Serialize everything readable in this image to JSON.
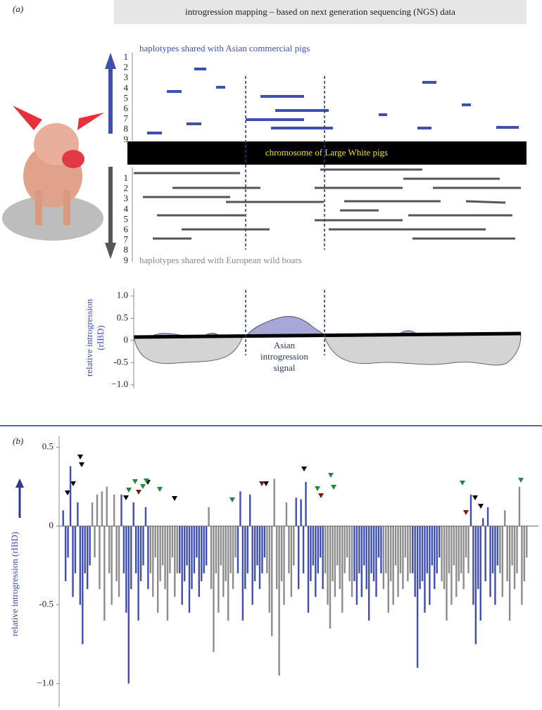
{
  "header": {
    "panel_a": "(a)",
    "banner": "introgression mapping – based on next generation sequencing (NGS) data",
    "panel_b": "(b)"
  },
  "haplotypes": {
    "asian_label": "haplotypes shared with Asian commercial pigs",
    "wild_label": "haplotypes shared with European wild boars",
    "chromosome_label": "chromosome of Large White pigs",
    "rows_top": [
      1,
      2,
      3,
      4,
      5,
      6,
      7,
      8,
      9
    ],
    "rows_bottom": [
      1,
      2,
      3,
      4,
      5,
      6,
      7,
      8,
      9
    ]
  },
  "chart_data": [
    {
      "type": "area",
      "ylabel": [
        "relative introgression",
        "(rIBD)"
      ],
      "annotation": [
        "Asian",
        "introgression",
        "signal"
      ],
      "ylim": [
        -1.08,
        1.17
      ],
      "yticks": [
        {
          "value": 1.0,
          "label": "1.0"
        },
        0.5,
        0,
        -0.5,
        {
          "value": -1.0,
          "label": "−1.0"
        }
      ]
    },
    {
      "type": "bar",
      "ylabel": "relative introgression (rIBD)",
      "ylim": [
        -1.15,
        0.57
      ],
      "yticks": [
        0.5,
        0,
        -0.5,
        {
          "value": -1.0,
          "label": "−1.0"
        }
      ],
      "series": [
        {
          "color": "#3f4fae",
          "values": [
            0.1,
            -0.35,
            -0.2,
            0.38,
            -0.45,
            -0.3,
            0.15,
            -0.5,
            -0.75,
            -0.3,
            -0.4,
            -0.25
          ]
        },
        {
          "color": "#8c8c8c",
          "values": [
            0.15,
            -0.2,
            0.2,
            -0.4,
            0.22,
            -0.6,
            0.25,
            -0.3,
            -0.5,
            0.2,
            -0.35,
            -0.45
          ]
        },
        {
          "color": "#3f4fae",
          "values": [
            0.2,
            -0.3,
            -0.55,
            -1.0,
            -0.4,
            0.15,
            -0.3,
            -0.6,
            -0.35,
            -0.25,
            0.12,
            -0.4
          ]
        },
        {
          "color": "#8c8c8c",
          "values": [
            -0.3,
            -0.45,
            -0.2,
            -0.55,
            -0.35,
            -0.25,
            -0.4,
            -0.6,
            -0.3,
            -0.2,
            -0.45,
            -0.3
          ]
        },
        {
          "color": "#3f4fae",
          "values": [
            -0.3,
            -0.5,
            -0.35,
            -0.25,
            -0.55,
            -0.4,
            -0.3,
            -0.2,
            -0.45,
            -0.35,
            -0.3,
            -0.25
          ]
        },
        {
          "color": "#8c8c8c",
          "values": [
            0.12,
            -0.4,
            -0.8,
            -0.3,
            -0.55,
            -0.25,
            -0.45,
            -0.35,
            -0.6,
            -0.3,
            -0.4,
            -0.2
          ]
        },
        {
          "color": "#3f4fae",
          "values": [
            -0.3,
            0.22,
            -0.6,
            -0.4,
            -0.3,
            0.2,
            -0.5,
            -0.35,
            -0.25,
            -0.4,
            -0.3,
            -0.2
          ]
        },
        {
          "color": "#8c8c8c",
          "values": [
            -0.3,
            -0.55,
            -0.7,
            0.3,
            -0.4,
            -0.95,
            -0.35,
            -0.5,
            0.15,
            -0.3,
            -0.45,
            -0.25
          ]
        },
        {
          "color": "#3f4fae",
          "values": [
            0.18,
            -0.4,
            0.17,
            -0.3,
            0.28,
            -0.55,
            -0.35,
            -0.25,
            -0.45,
            -0.3,
            -0.2,
            -0.4
          ]
        },
        {
          "color": "#8c8c8c",
          "values": [
            -0.3,
            -0.5,
            -0.65,
            -0.35,
            -0.45,
            -0.25,
            -0.4,
            -0.55,
            -0.3,
            -0.2,
            -0.35,
            -0.45
          ]
        },
        {
          "color": "#3f4fae",
          "values": [
            -0.35,
            -0.5,
            -0.3,
            -0.45,
            -0.25,
            -0.4,
            -0.6,
            -0.3,
            -0.35,
            -0.45,
            -0.2,
            -0.3
          ]
        },
        {
          "color": "#8c8c8c",
          "values": [
            -0.4,
            -0.3,
            -0.55,
            -0.35,
            -0.5,
            -0.25,
            -0.45,
            -0.3,
            -0.4,
            -0.2,
            -0.35,
            -0.3
          ]
        },
        {
          "color": "#3f4fae",
          "values": [
            -0.3,
            -0.45,
            -0.9,
            -0.4,
            -0.35,
            -0.55,
            -0.3,
            -0.5,
            -0.25,
            -0.4,
            -0.3,
            -0.2
          ]
        },
        {
          "color": "#8c8c8c",
          "values": [
            -0.35,
            -0.4,
            -0.6,
            -0.3,
            -0.5,
            -0.25,
            -0.45,
            -0.35,
            -0.3,
            -0.4,
            -0.2,
            -0.3
          ]
        },
        {
          "color": "#3f4fae",
          "values": [
            0.2,
            -0.5,
            -0.75,
            -0.4,
            -0.6,
            0.05,
            -0.35,
            0.12,
            -0.45,
            -0.3,
            -0.5,
            -0.25
          ]
        },
        {
          "color": "#8c8c8c",
          "values": [
            -0.3,
            -0.45,
            0.1,
            -0.35,
            -0.6,
            -0.25,
            -0.4,
            -0.3,
            0.25,
            -0.5,
            -0.35,
            -0.2
          ]
        }
      ]
    }
  ]
}
